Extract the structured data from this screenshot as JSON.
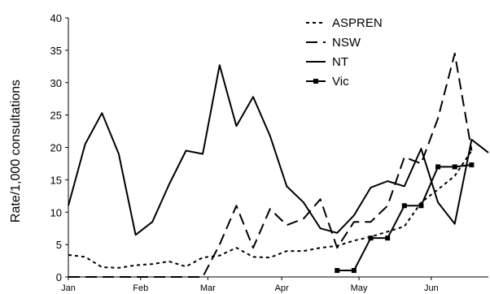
{
  "chart_data": {
    "type": "line",
    "title": "",
    "xlabel": "",
    "ylabel": "Rate/1,000 consultations",
    "ylim": [
      0,
      40
    ],
    "yticks": [
      0,
      5,
      10,
      15,
      20,
      25,
      30,
      35,
      40
    ],
    "xlim": [
      0,
      25
    ],
    "xticks": [
      {
        "label": "Jan",
        "x": 0
      },
      {
        "label": "Feb",
        "x": 4.3
      },
      {
        "label": "Mar",
        "x": 8.3
      },
      {
        "label": "Apr",
        "x": 12.7
      },
      {
        "label": "May",
        "x": 17.3
      },
      {
        "label": "Jun",
        "x": 21.6
      }
    ],
    "grid": false,
    "legend_position": "top-right",
    "series": [
      {
        "name": "ASPREN",
        "style": "dotted",
        "color": "#000000",
        "points": [
          [
            0,
            3.4
          ],
          [
            1,
            3.1
          ],
          [
            2,
            1.5
          ],
          [
            3,
            1.4
          ],
          [
            4,
            1.8
          ],
          [
            5,
            2
          ],
          [
            6,
            2.4
          ],
          [
            7,
            1.6
          ],
          [
            8,
            3
          ],
          [
            9,
            3.3
          ],
          [
            10,
            4.5
          ],
          [
            11,
            3.1
          ],
          [
            12,
            3
          ],
          [
            13,
            4
          ],
          [
            14,
            4
          ],
          [
            15,
            4.5
          ],
          [
            16,
            4.8
          ],
          [
            17,
            5.6
          ],
          [
            18,
            6.2
          ],
          [
            19,
            7
          ],
          [
            20,
            7.8
          ],
          [
            21,
            11.5
          ],
          [
            22,
            13.5
          ],
          [
            23,
            15.6
          ],
          [
            24,
            19.5
          ]
        ]
      },
      {
        "name": "NSW",
        "style": "long-dash",
        "color": "#000000",
        "points": [
          [
            0,
            0
          ],
          [
            1,
            0
          ],
          [
            2,
            0
          ],
          [
            3,
            0
          ],
          [
            4,
            0
          ],
          [
            5,
            0
          ],
          [
            6,
            0
          ],
          [
            7,
            0
          ],
          [
            8,
            0
          ],
          [
            9,
            5
          ],
          [
            10,
            11
          ],
          [
            11,
            4.5
          ],
          [
            12,
            10.5
          ],
          [
            13,
            8
          ],
          [
            14,
            9
          ],
          [
            15,
            12
          ],
          [
            16,
            4.5
          ],
          [
            17,
            8.5
          ],
          [
            18,
            8.5
          ],
          [
            19,
            11
          ],
          [
            20,
            18.5
          ],
          [
            21,
            17.5
          ],
          [
            22,
            24.5
          ],
          [
            23,
            34.5
          ],
          [
            24,
            19.5
          ]
        ]
      },
      {
        "name": "NT",
        "style": "solid",
        "color": "#000000",
        "points": [
          [
            0,
            11
          ],
          [
            1,
            20.5
          ],
          [
            2,
            25.3
          ],
          [
            3,
            19
          ],
          [
            4,
            6.5
          ],
          [
            5,
            8.5
          ],
          [
            6,
            14.3
          ],
          [
            7,
            19.5
          ],
          [
            8,
            19
          ],
          [
            9,
            32.7
          ],
          [
            10,
            23.3
          ],
          [
            11,
            27.8
          ],
          [
            12,
            21.8
          ],
          [
            13,
            14
          ],
          [
            14,
            11.5
          ],
          [
            15,
            7.5
          ],
          [
            16,
            6.8
          ],
          [
            17,
            9.5
          ],
          [
            18,
            13.8
          ],
          [
            19,
            14.8
          ],
          [
            20,
            14
          ],
          [
            21,
            19.8
          ],
          [
            22,
            11.5
          ],
          [
            23,
            8.2
          ],
          [
            24,
            21.2
          ],
          [
            25,
            19.2
          ]
        ]
      },
      {
        "name": "Vic",
        "style": "solid-square-markers",
        "color": "#000000",
        "points": [
          [
            16,
            1
          ],
          [
            17,
            1
          ],
          [
            18,
            6
          ],
          [
            19,
            6
          ],
          [
            20,
            11
          ],
          [
            21,
            11
          ],
          [
            22,
            17
          ],
          [
            23,
            17
          ],
          [
            24,
            17.3
          ]
        ]
      }
    ]
  }
}
